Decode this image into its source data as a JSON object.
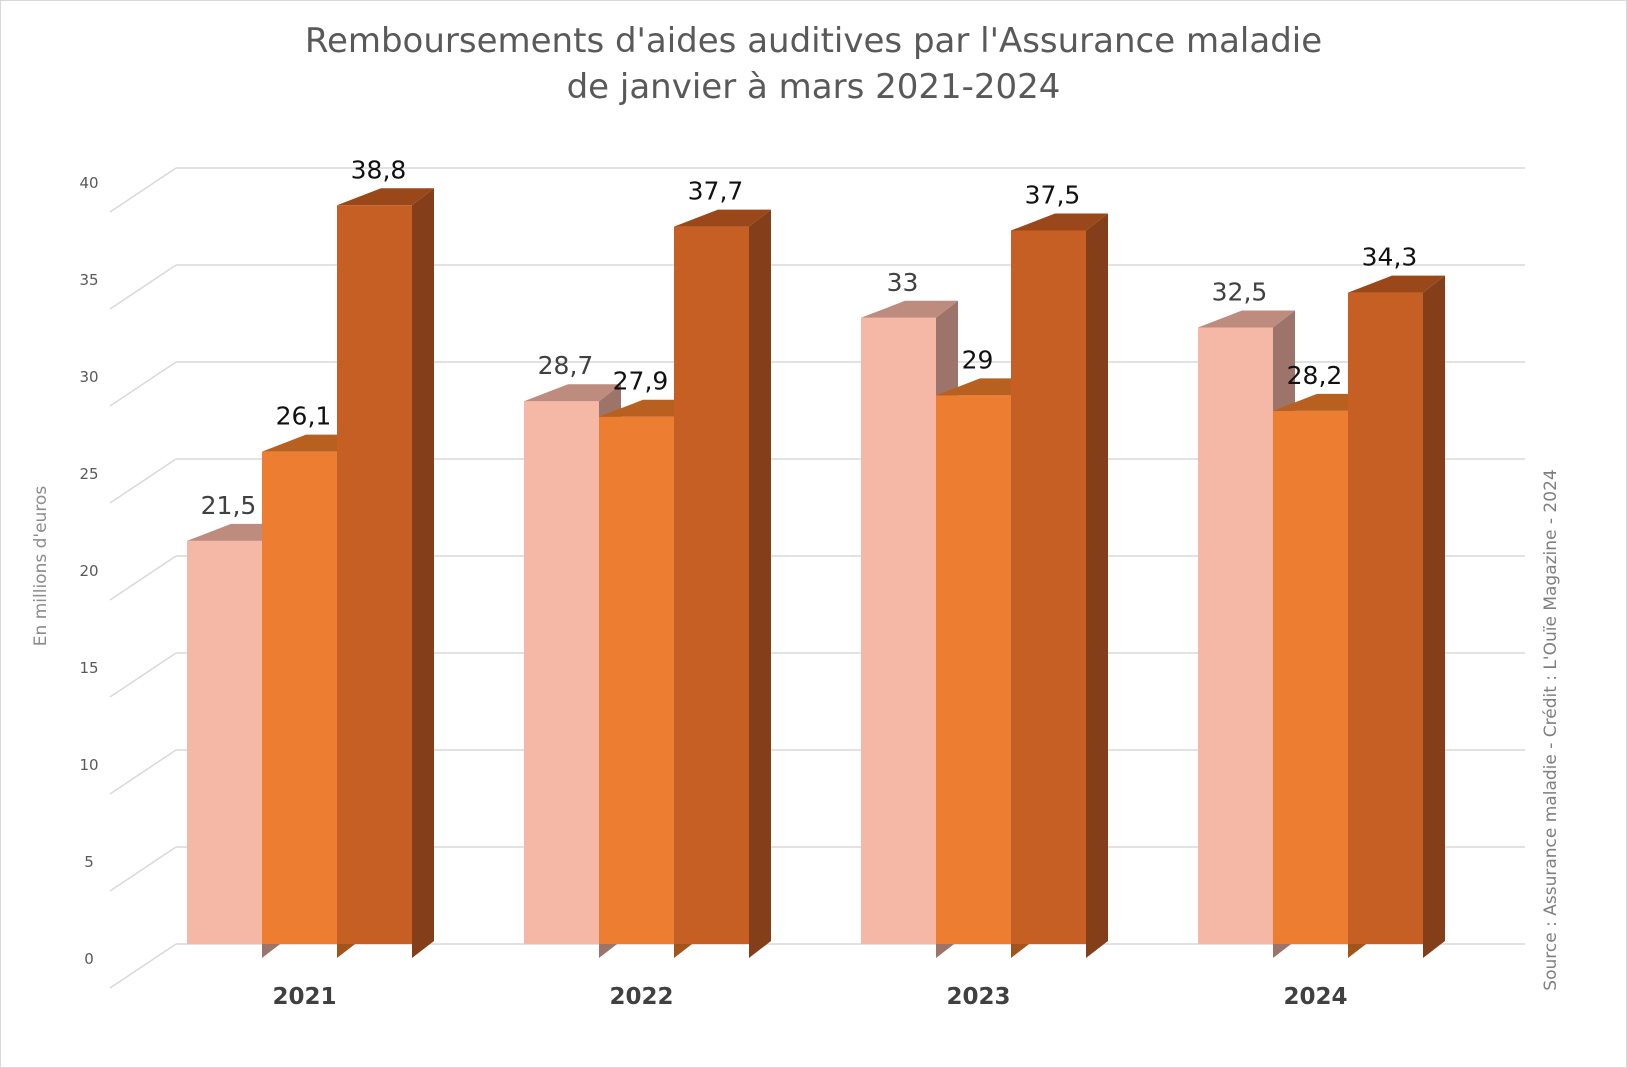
{
  "chart_data": {
    "type": "bar",
    "style": "3d-clustered-column",
    "title_lines": [
      "Remboursements d'aides auditives par l'Assurance maladie",
      "de janvier à mars 2021-2024"
    ],
    "xlabel": "",
    "ylabel": "En millions d'euros",
    "ylim": [
      0,
      40
    ],
    "y_ticks": [
      "0",
      "5",
      "10",
      "15",
      "20",
      "25",
      "30",
      "35",
      "40"
    ],
    "grid": true,
    "legend": "none",
    "categories": [
      "2021",
      "2022",
      "2023",
      "2024"
    ],
    "series": [
      {
        "values": [
          21.5,
          28.7,
          33,
          32.5
        ],
        "labels": [
          "21,5",
          "28,7",
          "33",
          "32,5"
        ],
        "colors": {
          "front": "#f6b8a6",
          "top": "#bd8c7e",
          "side": "#9c7469"
        }
      },
      {
        "values": [
          26.1,
          27.9,
          29,
          28.2
        ],
        "labels": [
          "26,1",
          "27,9",
          "29",
          "28,2"
        ],
        "colors": {
          "front": "#ed7d31",
          "top": "#b8601f",
          "side": "#a3541b"
        }
      },
      {
        "values": [
          38.8,
          37.7,
          37.5,
          34.3
        ],
        "labels": [
          "38,8",
          "37,7",
          "37,5",
          "34,3"
        ],
        "colors": {
          "front": "#c55f24",
          "top": "#9a4719",
          "side": "#843f1a"
        }
      }
    ],
    "source": "Source : Assurance maladie - Crédit : L'Ouïe Magazine - 2024"
  }
}
